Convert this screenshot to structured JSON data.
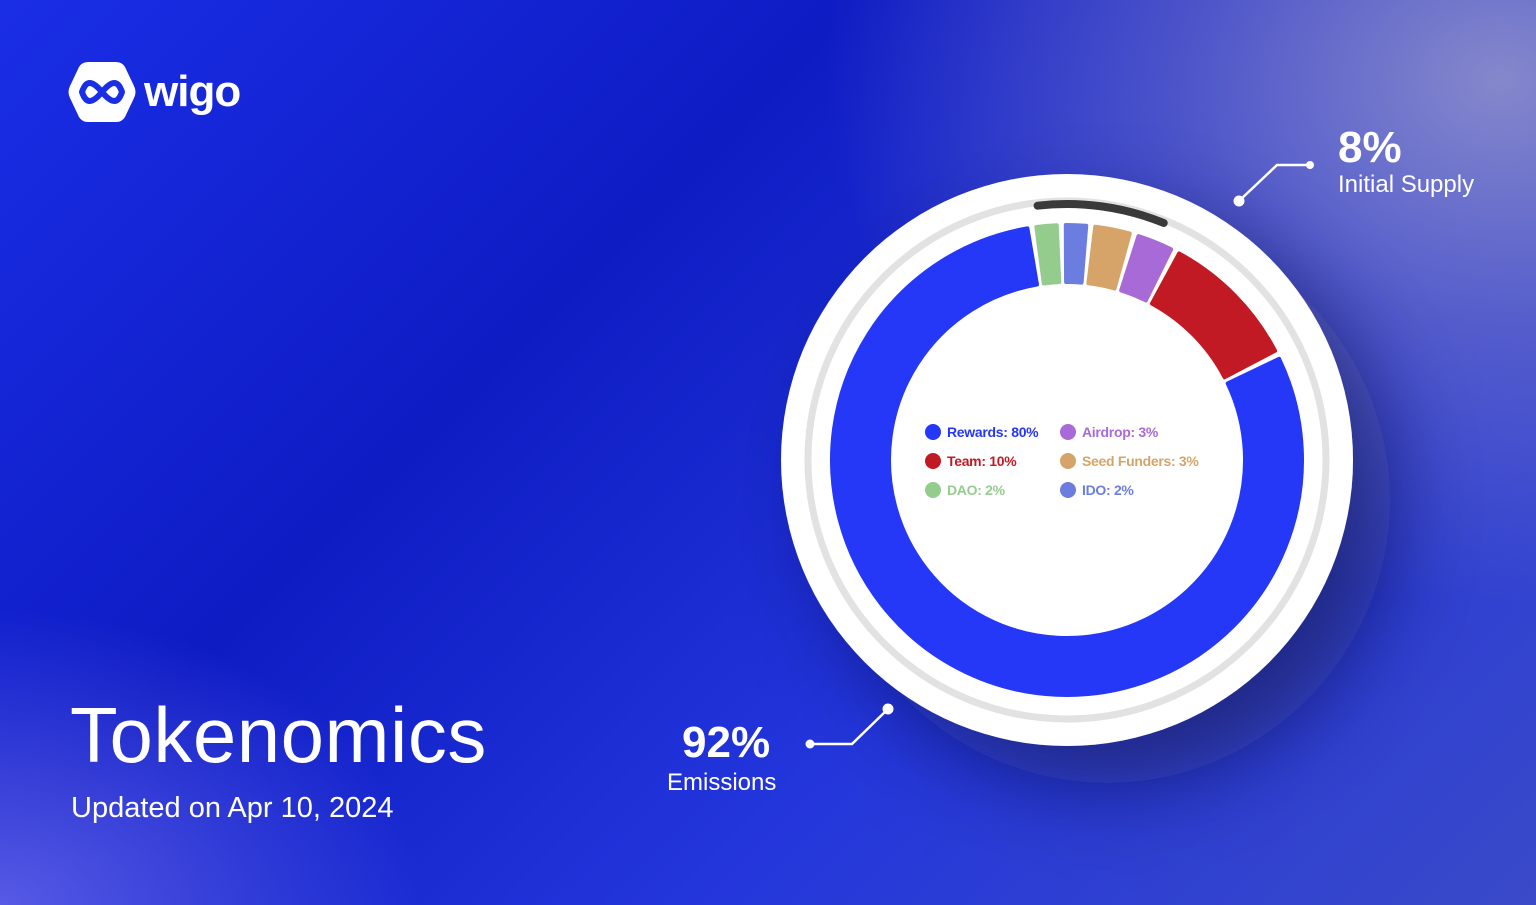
{
  "brand": {
    "name": "wigo",
    "logo_icon": "wigo-logo-icon"
  },
  "title": "Tokenomics",
  "subtitle": "Updated on Apr 10, 2024",
  "colors": {
    "rewards": "#2537f7",
    "team": "#c21a24",
    "airdrop": "#a86ad6",
    "seed_funders": "#d6a468",
    "dao": "#94cc8e",
    "ido": "#6b7ee0",
    "initial_supply_arc": "#3a3a3a",
    "track": "#e2e2e2"
  },
  "callouts": {
    "initial_supply": {
      "pct": "8%",
      "label": "Initial Supply"
    },
    "emissions": {
      "pct": "92%",
      "label": "Emissions"
    }
  },
  "chart_data": {
    "type": "pie",
    "title": "",
    "series": [
      {
        "name": "Rewards",
        "label": "Rewards: 80%",
        "value": 80,
        "color": "#2537f7"
      },
      {
        "name": "Team",
        "label": "Team: 10%",
        "value": 10,
        "color": "#c21a24"
      },
      {
        "name": "Airdrop",
        "label": "Airdrop: 3%",
        "value": 3,
        "color": "#a86ad6"
      },
      {
        "name": "Seed Funders",
        "label": "Seed Funders: 3%",
        "value": 3,
        "color": "#d6a468"
      },
      {
        "name": "IDO",
        "label": "IDO: 2%",
        "value": 2,
        "color": "#6b7ee0"
      },
      {
        "name": "DAO",
        "label": "DAO: 2%",
        "value": 2,
        "color": "#94cc8e"
      }
    ],
    "groups": [
      {
        "label": "Initial Supply",
        "value": 8
      },
      {
        "label": "Emissions",
        "value": 92
      }
    ],
    "legend_order": [
      "Rewards",
      "Airdrop",
      "Team",
      "Seed Funders",
      "DAO",
      "IDO"
    ],
    "legend_placement": "center"
  }
}
